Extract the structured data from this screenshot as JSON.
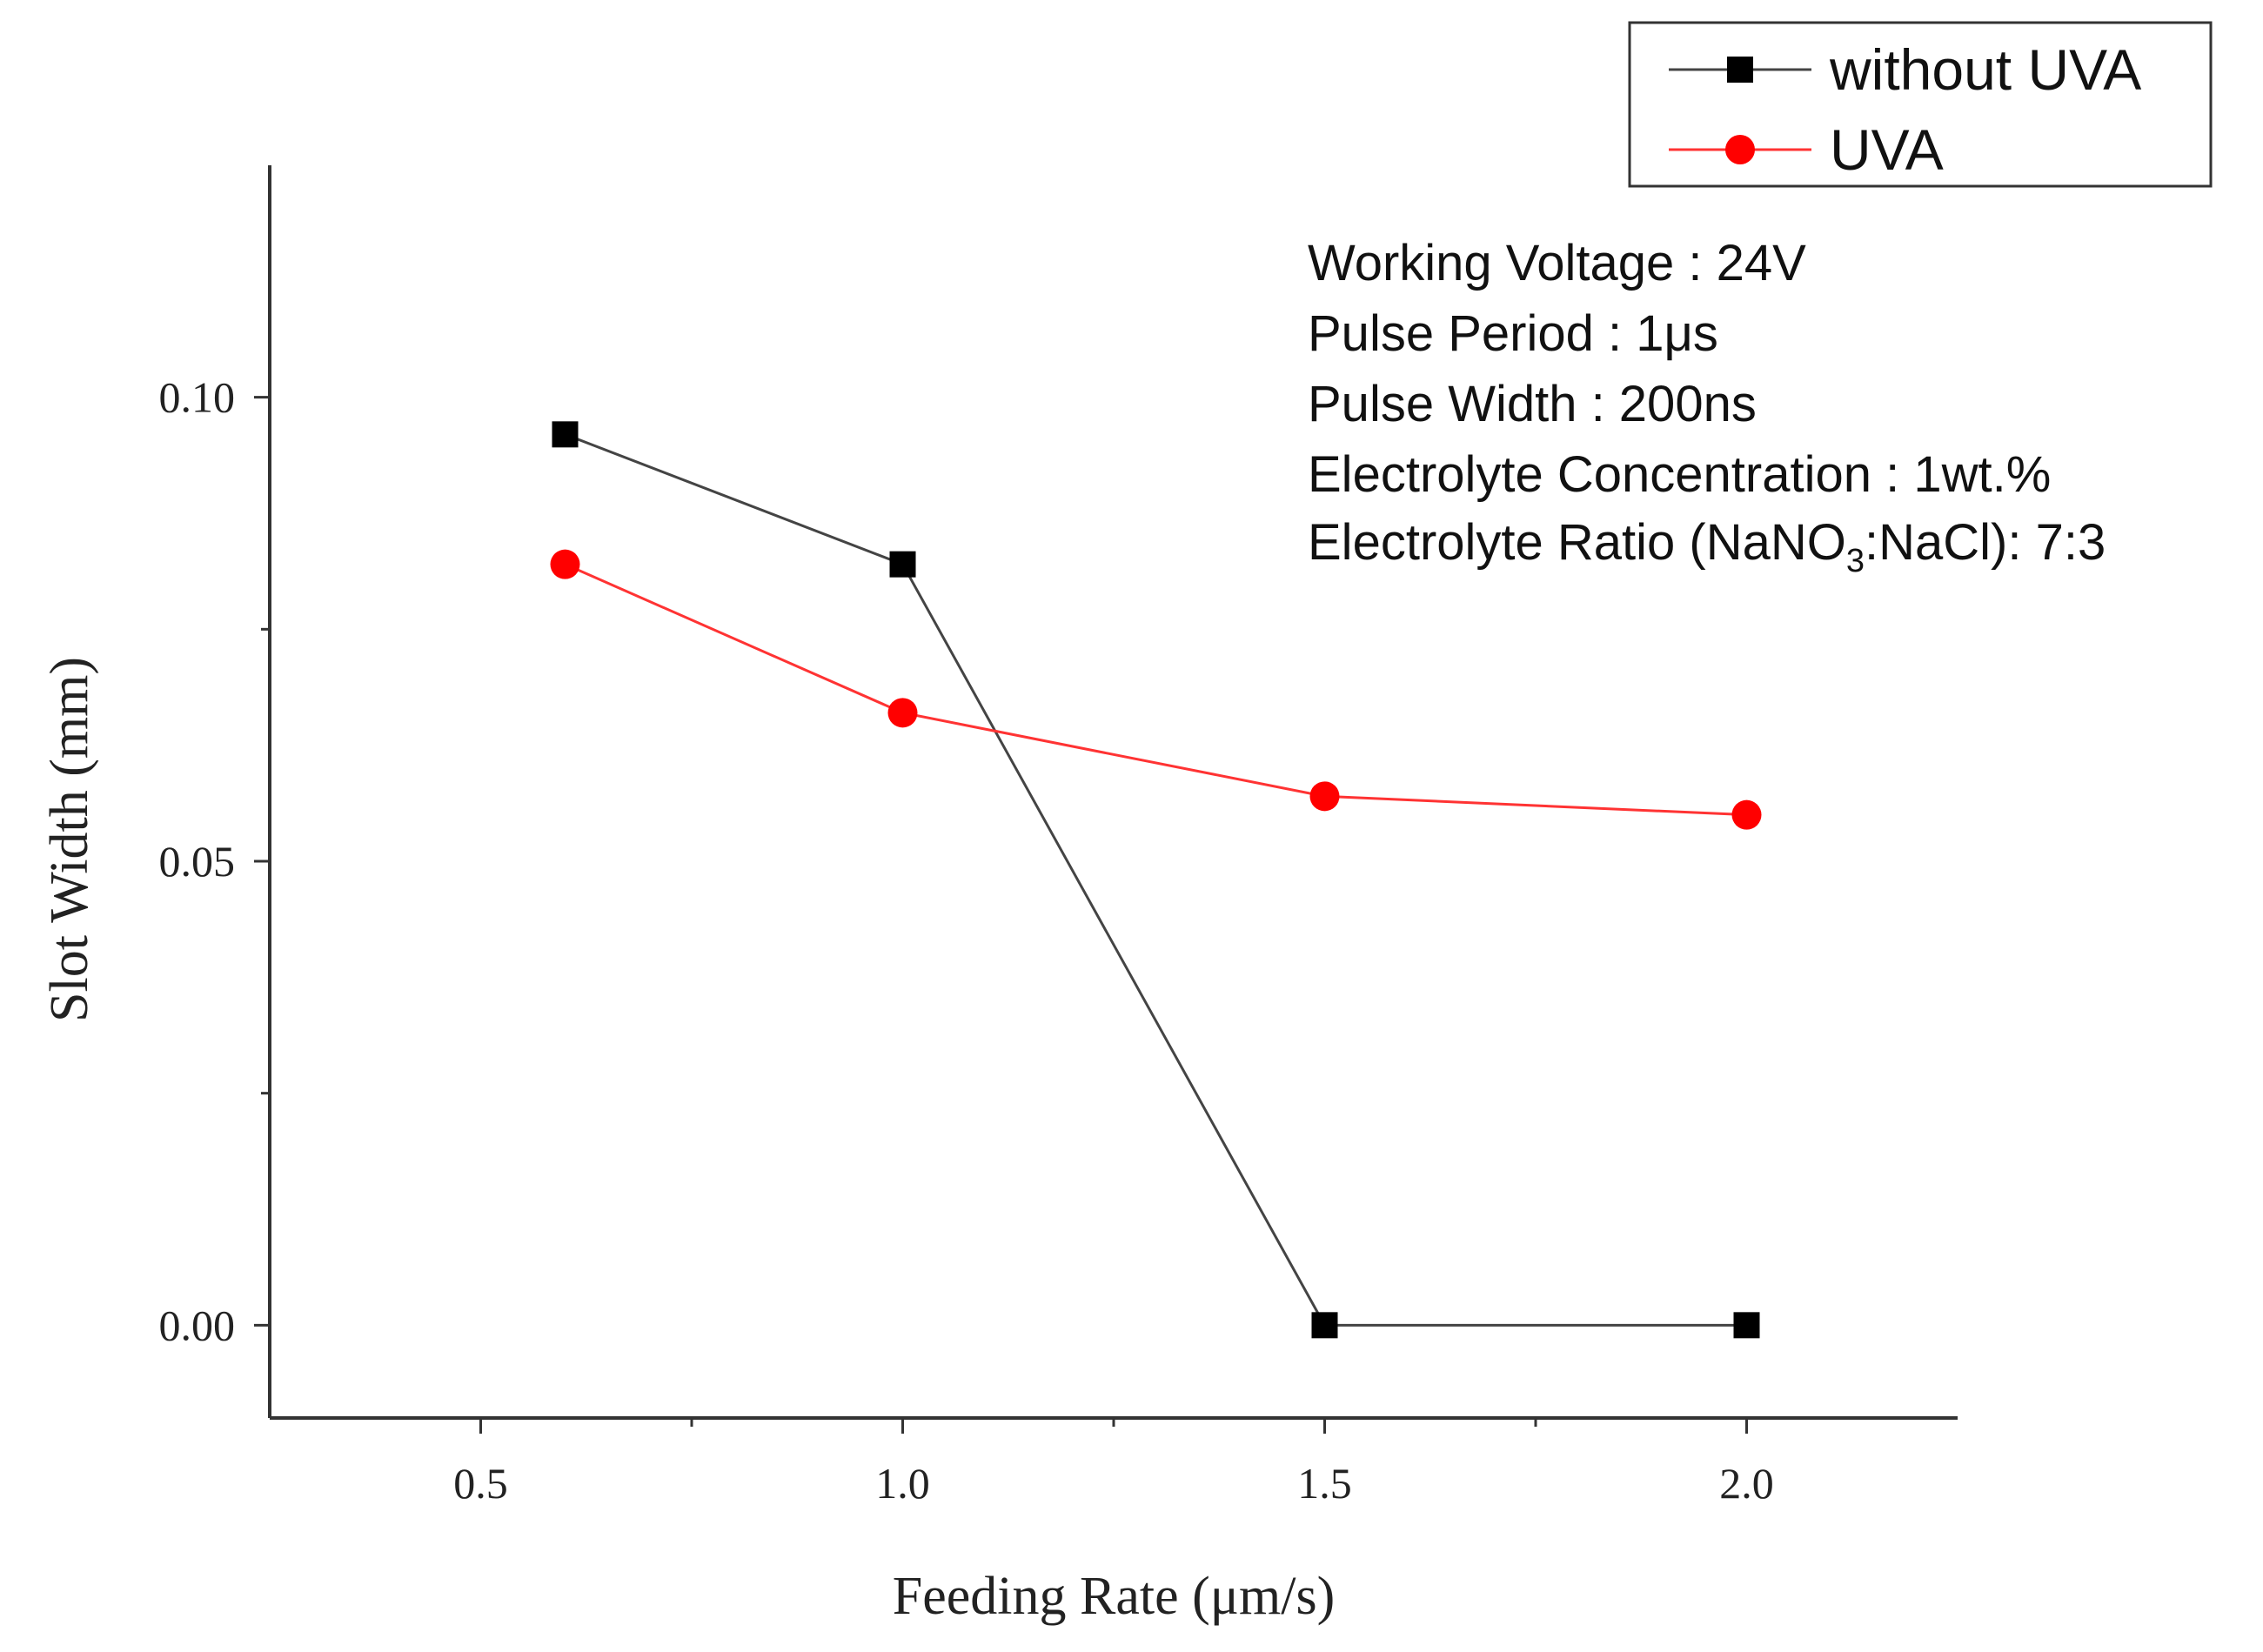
{
  "chart_data": {
    "type": "line",
    "xlabel": "Feeding Rate (μm/s)",
    "ylabel": "Slot Width (mm)",
    "xlim": [
      0.25,
      2.25
    ],
    "ylim": [
      -0.01,
      0.125
    ],
    "x_ticks": [
      {
        "value": 0.5,
        "label": "0.5"
      },
      {
        "value": 1.0,
        "label": "1.0"
      },
      {
        "value": 1.5,
        "label": "1.5"
      },
      {
        "value": 2.0,
        "label": "2.0"
      }
    ],
    "x_minor_ticks": [
      0.75,
      1.25,
      1.75
    ],
    "y_ticks": [
      {
        "value": 0.0,
        "label": "0.00"
      },
      {
        "value": 0.05,
        "label": "0.05"
      },
      {
        "value": 0.1,
        "label": "0.10"
      }
    ],
    "y_minor_ticks": [
      0.025,
      0.075
    ],
    "grid": false,
    "legend_position": "top-right",
    "series": [
      {
        "name": "without UVA",
        "color": "#000000",
        "line_color": "#444444",
        "marker": "square",
        "x": [
          0.6,
          1.0,
          1.5,
          2.0
        ],
        "y": [
          0.096,
          0.082,
          0.0,
          0.0
        ]
      },
      {
        "name": "UVA",
        "color": "#ff0000",
        "line_color": "#ff3333",
        "marker": "circle",
        "x": [
          0.6,
          1.0,
          1.5,
          2.0
        ],
        "y": [
          0.082,
          0.066,
          0.057,
          0.055
        ]
      }
    ],
    "annotations": {
      "voltage": "Working Voltage : 24V",
      "period": "Pulse Period : 1μs",
      "width": "Pulse Width : 200ns",
      "concentration": "Electrolyte Concentration : 1wt.%",
      "ratio_prefix": "Electrolyte Ratio (NaNO",
      "ratio_sub": "3",
      "ratio_suffix": ":NaCl): 7:3"
    }
  }
}
